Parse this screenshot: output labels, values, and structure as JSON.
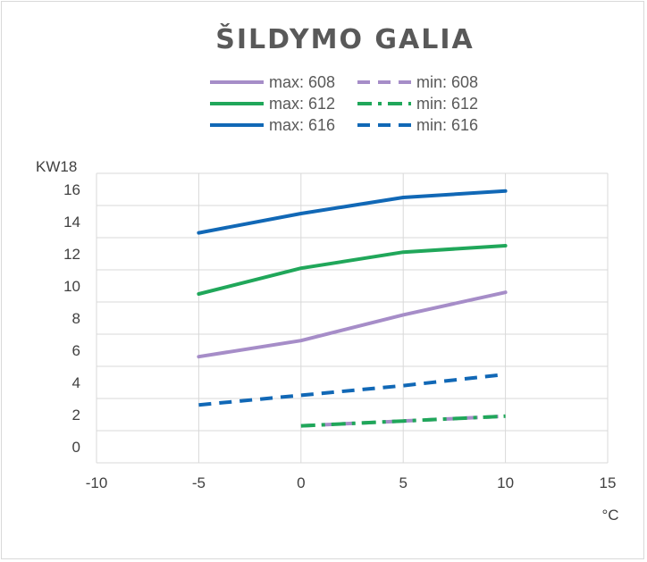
{
  "chart_data": {
    "type": "line",
    "title": "ŠILDYMO GALIA",
    "ylabel": "KW18",
    "xlabel": "°C",
    "xlim": [
      -10,
      15
    ],
    "ylim": [
      0,
      18
    ],
    "x_ticks": [
      "-10",
      "-5",
      "0",
      "5",
      "10",
      "15"
    ],
    "y_ticks": [
      "0",
      "2",
      "4",
      "6",
      "8",
      "10",
      "12",
      "14",
      "16"
    ],
    "grid": true,
    "legend_position": "top",
    "x": [
      -5,
      0,
      5,
      10
    ],
    "series": [
      {
        "name": "max: 608",
        "color": "#a68dc8",
        "style": "solid",
        "points": [
          [
            -5,
            6.6
          ],
          [
            0,
            7.6
          ],
          [
            5,
            9.2
          ],
          [
            10,
            10.6
          ]
        ]
      },
      {
        "name": "min: 608",
        "color": "#a68dc8",
        "style": "dash",
        "points": [
          [
            0,
            2.3
          ],
          [
            5,
            2.6
          ],
          [
            10,
            2.9
          ]
        ]
      },
      {
        "name": "max: 612",
        "color": "#20a75a",
        "style": "solid",
        "points": [
          [
            -5,
            10.5
          ],
          [
            0,
            12.1
          ],
          [
            5,
            13.1
          ],
          [
            10,
            13.5
          ]
        ]
      },
      {
        "name": "min: 612",
        "color": "#20a75a",
        "style": "dashdot",
        "points": [
          [
            0,
            2.3
          ],
          [
            5,
            2.6
          ],
          [
            10,
            2.9
          ]
        ]
      },
      {
        "name": "max: 616",
        "color": "#1168b6",
        "style": "solid",
        "points": [
          [
            -5,
            14.3
          ],
          [
            0,
            15.5
          ],
          [
            5,
            16.5
          ],
          [
            10,
            16.9
          ]
        ]
      },
      {
        "name": "min: 616",
        "color": "#1168b6",
        "style": "dash",
        "points": [
          [
            -5,
            3.6
          ],
          [
            0,
            4.2
          ],
          [
            5,
            4.8
          ],
          [
            10,
            5.5
          ]
        ]
      }
    ]
  }
}
